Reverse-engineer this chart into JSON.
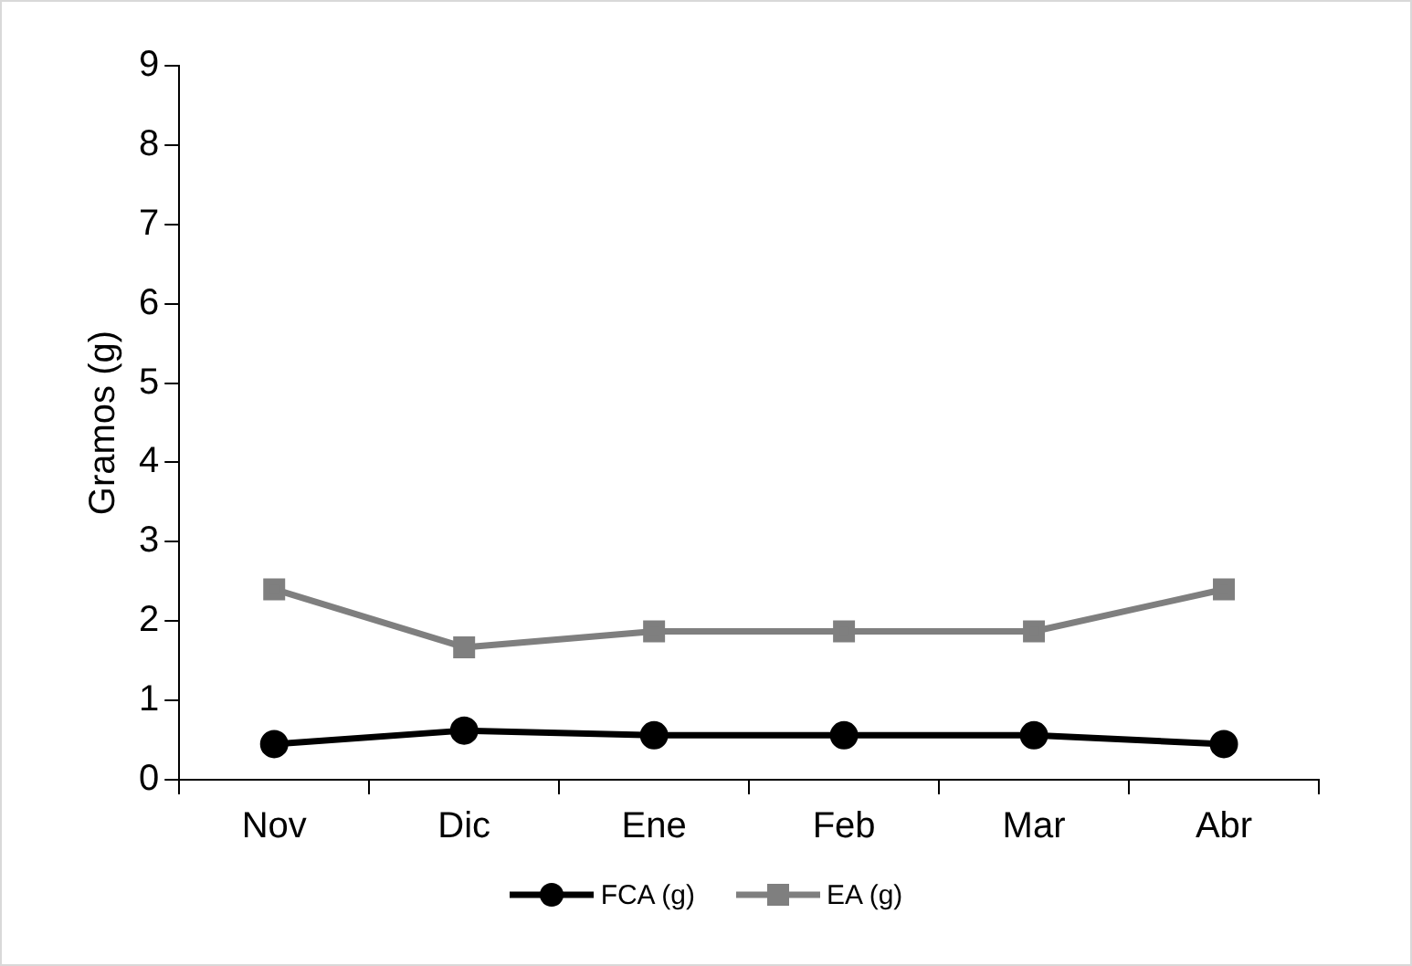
{
  "chart_data": {
    "type": "line",
    "ylabel": "Gramos (g)",
    "categories": [
      "Nov",
      "Dic",
      "Ene",
      "Feb",
      "Mar",
      "Abr"
    ],
    "series": [
      {
        "name": "FCA (g)",
        "color": "#000000",
        "marker": "circle",
        "values": [
          0.45,
          0.62,
          0.56,
          0.56,
          0.56,
          0.45
        ]
      },
      {
        "name": "EA (g)",
        "color": "#7f7f7f",
        "marker": "square",
        "values": [
          2.4,
          1.67,
          1.87,
          1.87,
          1.87,
          2.4
        ]
      }
    ],
    "ylim": [
      0,
      9
    ],
    "yticks": [
      0,
      1,
      2,
      3,
      4,
      5,
      6,
      7,
      8,
      9
    ],
    "grid": false,
    "legend": "bottom"
  }
}
